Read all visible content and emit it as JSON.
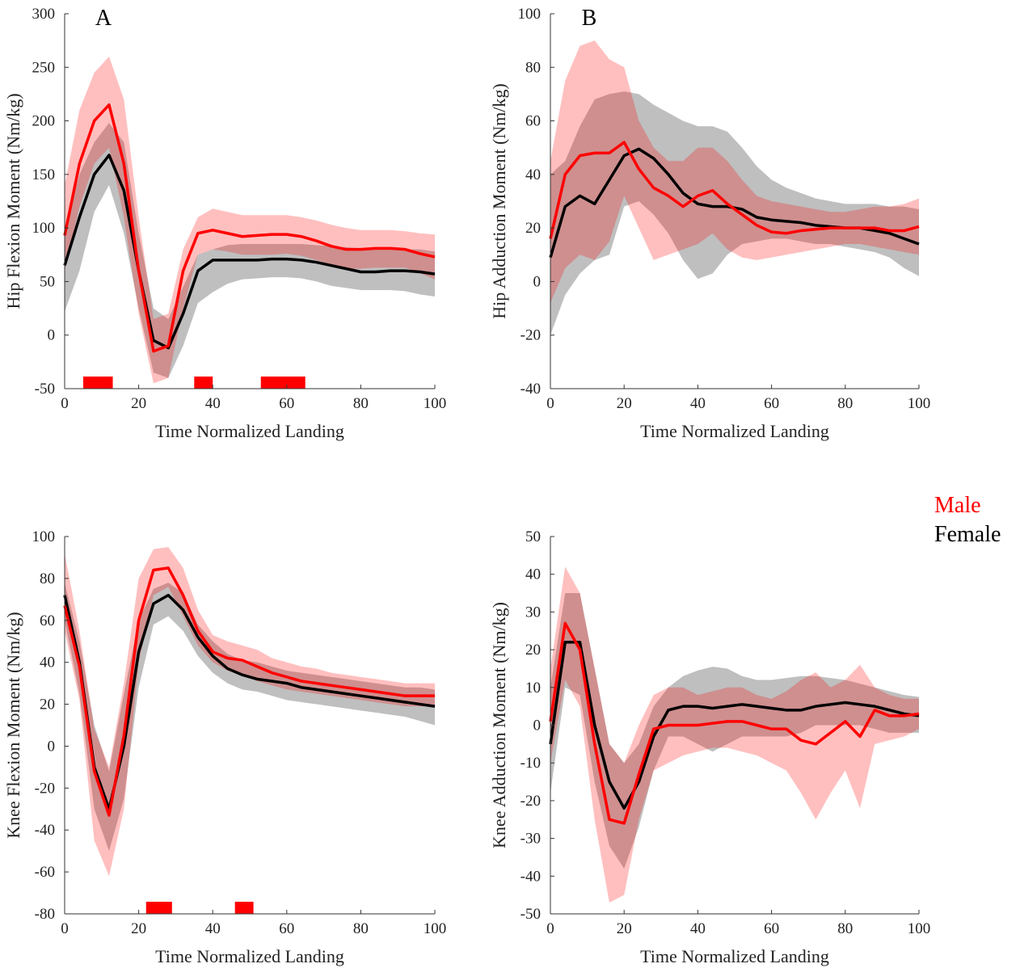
{
  "chart_data": [
    {
      "type": "line",
      "title": "A",
      "xlabel": "Time Normalized Landing",
      "ylabel": "Hip Flexion Moment (Nm/kg)",
      "xlim": [
        0,
        100
      ],
      "xticks": [
        0,
        20,
        40,
        60,
        80,
        100
      ],
      "ylim": [
        -50,
        300
      ],
      "yticks": [
        -50,
        0,
        50,
        100,
        150,
        200,
        250,
        300
      ],
      "x": [
        0,
        4,
        8,
        12,
        16,
        20,
        24,
        28,
        32,
        36,
        40,
        44,
        48,
        52,
        56,
        60,
        64,
        68,
        72,
        76,
        80,
        84,
        88,
        92,
        96,
        100
      ],
      "series": [
        {
          "name": "Female",
          "color": "#000000",
          "band_color": "#808080",
          "band_opacity": 0.5,
          "values": [
            65,
            110,
            150,
            168,
            135,
            60,
            -5,
            -12,
            20,
            60,
            70,
            70,
            70,
            70,
            71,
            71,
            70,
            68,
            65,
            62,
            59,
            59,
            60,
            60,
            59,
            57
          ],
          "upper": [
            100,
            150,
            180,
            198,
            180,
            95,
            25,
            15,
            45,
            75,
            80,
            84,
            85,
            85,
            85,
            85,
            85,
            84,
            83,
            82,
            81,
            81,
            81,
            80,
            80,
            78
          ],
          "lower": [
            22,
            60,
            115,
            140,
            95,
            25,
            -35,
            -40,
            -10,
            30,
            40,
            48,
            52,
            53,
            54,
            54,
            53,
            50,
            46,
            44,
            42,
            42,
            42,
            41,
            38,
            36
          ]
        },
        {
          "name": "Male",
          "color": "#ff0000",
          "band_color": "#ff0000",
          "band_opacity": 0.25,
          "values": [
            93,
            160,
            200,
            215,
            160,
            60,
            -15,
            -10,
            60,
            95,
            98,
            95,
            92,
            93,
            94,
            94,
            92,
            88,
            83,
            80,
            80,
            81,
            81,
            80,
            76,
            73
          ],
          "upper": [
            140,
            210,
            245,
            260,
            220,
            110,
            15,
            20,
            80,
            110,
            118,
            115,
            112,
            112,
            112,
            112,
            110,
            107,
            103,
            100,
            98,
            98,
            98,
            97,
            95,
            94
          ],
          "lower": [
            60,
            120,
            160,
            175,
            110,
            20,
            -45,
            -40,
            25,
            75,
            80,
            78,
            75,
            75,
            75,
            76,
            74,
            70,
            66,
            62,
            62,
            63,
            63,
            63,
            58,
            52
          ]
        }
      ],
      "significance": [
        [
          5,
          13
        ],
        [
          35,
          40
        ],
        [
          53,
          65
        ]
      ],
      "significance_color": "#ff0000"
    },
    {
      "type": "line",
      "title": "B",
      "xlabel": "Time Normalized Landing",
      "ylabel": "Hip Adduction Moment (Nm/kg)",
      "xlim": [
        0,
        100
      ],
      "xticks": [
        0,
        20,
        40,
        60,
        80,
        100
      ],
      "ylim": [
        -40,
        100
      ],
      "yticks": [
        -40,
        -20,
        0,
        20,
        40,
        60,
        80,
        100
      ],
      "x": [
        0,
        4,
        8,
        12,
        16,
        20,
        24,
        28,
        32,
        36,
        40,
        44,
        48,
        52,
        56,
        60,
        64,
        68,
        72,
        76,
        80,
        84,
        88,
        92,
        96,
        100
      ],
      "series": [
        {
          "color": "#000000",
          "band_color": "#808080",
          "band_opacity": 0.5,
          "values": [
            9,
            28,
            32,
            29,
            38,
            47,
            49.5,
            46,
            40,
            33,
            29,
            28,
            28,
            27,
            24,
            23,
            22.5,
            22,
            21,
            20.5,
            20,
            20,
            19,
            18,
            16,
            14
          ],
          "upper": [
            40,
            45,
            58,
            68,
            70,
            71,
            70,
            66,
            63,
            60,
            58,
            58,
            56,
            50,
            43,
            38,
            35,
            33,
            31,
            30,
            29,
            29,
            29,
            28,
            28,
            27
          ],
          "lower": [
            -20,
            -5,
            3,
            8,
            10,
            28,
            30,
            25,
            18,
            8,
            1,
            3,
            10,
            14,
            15,
            16,
            16,
            15,
            14,
            14,
            13,
            12,
            11,
            9,
            5,
            2
          ]
        },
        {
          "color": "#ff0000",
          "band_color": "#ff0000",
          "band_opacity": 0.25,
          "values": [
            16,
            40,
            47,
            48,
            48,
            52,
            42,
            35,
            32,
            28,
            32,
            34,
            29,
            25,
            21,
            18.5,
            18,
            19,
            19.5,
            20,
            20,
            20,
            20,
            19,
            19,
            20.5
          ],
          "upper": [
            45,
            75,
            88,
            90,
            83,
            80,
            60,
            50,
            45,
            45,
            50,
            50,
            45,
            38,
            32,
            30,
            29,
            28,
            27,
            26,
            26,
            27,
            28,
            28,
            29,
            31
          ],
          "lower": [
            -8,
            5,
            10,
            8,
            15,
            32,
            20,
            8,
            10,
            12,
            14,
            18,
            12,
            9,
            8,
            9,
            10,
            11,
            12,
            13,
            14,
            14,
            13,
            12,
            11,
            10
          ]
        }
      ]
    },
    {
      "type": "line",
      "xlabel": "Time Normalized Landing",
      "ylabel": "Knee Flexion Moment (Nm/kg)",
      "xlim": [
        0,
        100
      ],
      "xticks": [
        0,
        20,
        40,
        60,
        80,
        100
      ],
      "ylim": [
        -80,
        100
      ],
      "yticks": [
        -80,
        -60,
        -40,
        -20,
        0,
        20,
        40,
        60,
        80,
        100
      ],
      "x": [
        0,
        4,
        8,
        12,
        16,
        20,
        24,
        28,
        32,
        36,
        40,
        44,
        48,
        52,
        56,
        60,
        64,
        68,
        72,
        76,
        80,
        84,
        88,
        92,
        96,
        100
      ],
      "series": [
        {
          "color": "#000000",
          "band_color": "#808080",
          "band_opacity": 0.5,
          "values": [
            72,
            40,
            -10,
            -30,
            0,
            45,
            68,
            72,
            65,
            52,
            43,
            37,
            34,
            32,
            31,
            30,
            28,
            27,
            26,
            25,
            24,
            23,
            22,
            21,
            20,
            19
          ],
          "upper": [
            78,
            50,
            10,
            -12,
            25,
            60,
            75,
            78,
            73,
            58,
            50,
            44,
            41,
            40,
            38,
            36,
            35,
            34,
            33,
            32,
            31,
            30,
            29,
            28,
            28,
            27
          ],
          "lower": [
            60,
            25,
            -30,
            -50,
            -25,
            28,
            58,
            62,
            55,
            43,
            35,
            30,
            27,
            26,
            24,
            22,
            21,
            20,
            19,
            18,
            17,
            16,
            15,
            14,
            12,
            10
          ]
        },
        {
          "color": "#ff0000",
          "band_color": "#ff0000",
          "band_opacity": 0.25,
          "values": [
            67,
            38,
            -12,
            -33,
            5,
            60,
            84,
            85,
            72,
            55,
            45,
            42,
            41,
            38,
            35,
            33,
            31,
            30,
            29,
            28,
            27,
            26,
            25,
            24,
            24,
            24
          ],
          "upper": [
            92,
            55,
            8,
            -10,
            30,
            80,
            94,
            95,
            85,
            65,
            53,
            50,
            48,
            46,
            42,
            40,
            38,
            37,
            35,
            34,
            33,
            32,
            31,
            30,
            30,
            30
          ],
          "lower": [
            55,
            22,
            -45,
            -62,
            -30,
            40,
            72,
            76,
            62,
            48,
            40,
            36,
            34,
            31,
            29,
            27,
            26,
            25,
            24,
            23,
            22,
            21,
            20,
            19,
            19,
            19
          ]
        }
      ],
      "significance": [
        [
          22,
          29
        ],
        [
          46,
          51
        ]
      ],
      "significance_color": "#ff0000"
    },
    {
      "type": "line",
      "xlabel": "Time Normalized Landing",
      "ylabel": "Knee Adduction Moment (Nm/kg)",
      "xlim": [
        0,
        100
      ],
      "xticks": [
        0,
        20,
        40,
        60,
        80,
        100
      ],
      "ylim": [
        -50,
        50
      ],
      "yticks": [
        -50,
        -40,
        -30,
        -20,
        -10,
        0,
        10,
        20,
        30,
        40,
        50
      ],
      "x": [
        0,
        4,
        8,
        12,
        16,
        20,
        24,
        28,
        32,
        36,
        40,
        44,
        48,
        52,
        56,
        60,
        64,
        68,
        72,
        76,
        80,
        84,
        88,
        92,
        96,
        100
      ],
      "series": [
        {
          "color": "#000000",
          "band_color": "#808080",
          "band_opacity": 0.5,
          "values": [
            -5,
            22,
            22,
            0,
            -15,
            -22,
            -15,
            -3,
            4,
            5,
            5,
            4.5,
            5,
            5.5,
            5,
            4.5,
            4,
            4,
            5,
            5.5,
            6,
            5.5,
            5,
            4,
            3,
            2.5
          ],
          "upper": [
            10,
            35,
            35,
            15,
            -5,
            -10,
            -5,
            5,
            10,
            13,
            14.5,
            15.5,
            15,
            13,
            12,
            12,
            12.5,
            13,
            13,
            12.5,
            12,
            11,
            10,
            9,
            8,
            7.5
          ],
          "lower": [
            -18,
            10,
            8,
            -15,
            -32,
            -38,
            -27,
            -12,
            -3,
            -3,
            -5,
            -7,
            -5,
            -3,
            -3,
            -3,
            -3,
            -2,
            0,
            0,
            0,
            0,
            -1,
            -2,
            -2,
            -2
          ]
        },
        {
          "color": "#ff0000",
          "band_color": "#ff0000",
          "band_opacity": 0.25,
          "values": [
            1,
            27,
            20,
            -5,
            -25,
            -26,
            -13,
            -1,
            0,
            0,
            0,
            0.5,
            1,
            1,
            0,
            -1,
            -1,
            -4,
            -5,
            -2,
            1,
            -3,
            4,
            2.5,
            2.5,
            3
          ],
          "upper": [
            15,
            42,
            35,
            15,
            -5,
            -10,
            0,
            8,
            10,
            10,
            8,
            9,
            10,
            10,
            8,
            7,
            9,
            12,
            14,
            10,
            12,
            16,
            10,
            8,
            7,
            7
          ],
          "lower": [
            -10,
            12,
            5,
            -25,
            -47,
            -45,
            -25,
            -12,
            -10,
            -8,
            -7,
            -6,
            -6,
            -7,
            -8,
            -10,
            -12,
            -18,
            -25,
            -18,
            -12,
            -22,
            -5,
            -4,
            -3,
            -1
          ]
        }
      ]
    }
  ]
}
